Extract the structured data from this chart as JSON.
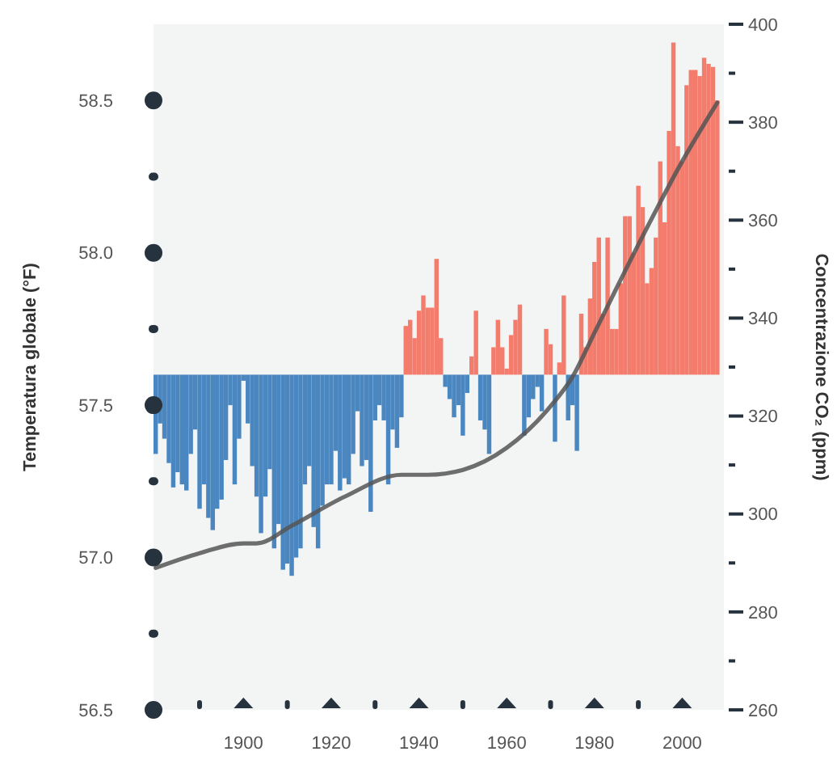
{
  "chart_data": {
    "type": "bar",
    "ylabel": "Temperatura globale (°F)",
    "y2label": "Concentrazione CO₂ (ppm)",
    "x": [
      1880,
      1881,
      1882,
      1883,
      1884,
      1885,
      1886,
      1887,
      1888,
      1889,
      1890,
      1891,
      1892,
      1893,
      1894,
      1895,
      1896,
      1897,
      1898,
      1899,
      1900,
      1901,
      1902,
      1903,
      1904,
      1905,
      1906,
      1907,
      1908,
      1909,
      1910,
      1911,
      1912,
      1913,
      1914,
      1915,
      1916,
      1917,
      1918,
      1919,
      1920,
      1921,
      1922,
      1923,
      1924,
      1925,
      1926,
      1927,
      1928,
      1929,
      1930,
      1931,
      1932,
      1933,
      1934,
      1935,
      1936,
      1937,
      1938,
      1939,
      1940,
      1941,
      1942,
      1943,
      1944,
      1945,
      1946,
      1947,
      1948,
      1949,
      1950,
      1951,
      1952,
      1953,
      1954,
      1955,
      1956,
      1957,
      1958,
      1959,
      1960,
      1961,
      1962,
      1963,
      1964,
      1965,
      1966,
      1967,
      1968,
      1969,
      1970,
      1971,
      1972,
      1973,
      1974,
      1975,
      1976,
      1977,
      1978,
      1979,
      1980,
      1981,
      1982,
      1983,
      1984,
      1985,
      1986,
      1987,
      1988,
      1989,
      1990,
      1991,
      1992,
      1993,
      1994,
      1995,
      1996,
      1997,
      1998,
      1999,
      2000,
      2001,
      2002,
      2003,
      2004,
      2005,
      2006,
      2007,
      2008
    ],
    "series": [
      {
        "base": [
          57.6,
          57.6,
          57.6,
          57.6,
          57.6,
          57.6,
          57.6,
          57.6,
          57.6,
          57.6,
          57.6,
          57.6,
          57.6,
          57.6,
          57.6,
          57.6,
          57.6,
          57.6,
          57.6,
          57.6,
          57.6,
          57.6,
          57.6,
          57.6,
          57.6,
          57.6,
          57.6,
          57.6,
          57.6,
          57.6,
          57.6,
          57.6,
          57.6,
          57.6,
          57.6,
          57.6,
          57.6,
          57.6,
          57.6,
          57.6,
          57.6,
          57.6,
          57.6,
          57.6,
          57.6,
          57.6,
          57.6,
          57.6,
          57.6,
          57.6,
          57.6,
          57.6,
          57.6,
          57.6,
          57.6,
          57.6,
          57.6,
          57.6,
          57.6,
          57.6,
          57.6,
          57.6,
          57.6,
          57.6,
          57.6,
          57.6,
          57.6,
          57.6,
          57.6,
          57.6,
          57.6,
          57.6,
          57.6,
          57.6,
          57.6,
          57.6,
          57.6,
          57.6,
          57.6,
          57.6,
          57.6,
          57.6,
          57.6,
          57.6,
          57.6,
          57.6,
          57.6,
          57.6,
          57.6,
          57.6,
          57.6,
          57.6,
          57.6,
          57.6,
          57.6,
          57.6,
          57.6,
          57.6,
          57.6,
          57.6,
          57.6,
          57.6,
          57.6,
          57.6,
          57.6,
          57.6,
          57.6,
          57.6,
          57.6,
          57.6,
          57.6,
          57.6,
          57.6,
          57.6,
          57.6,
          57.6,
          57.6,
          57.6,
          57.6,
          57.6,
          57.6,
          57.6,
          57.6,
          57.6,
          57.6,
          57.6,
          57.6,
          57.6,
          57.6
        ],
        "colors": [
          "#4a86bf",
          "#4a86bf",
          "#4a86bf",
          "#4a86bf",
          "#4a86bf",
          "#4a86bf",
          "#4a86bf",
          "#4a86bf",
          "#4a86bf",
          "#4a86bf",
          "#4a86bf",
          "#4a86bf",
          "#4a86bf",
          "#4a86bf",
          "#4a86bf",
          "#4a86bf",
          "#4a86bf",
          "#4a86bf",
          "#4a86bf",
          "#4a86bf",
          "#4a86bf",
          "#4a86bf",
          "#4a86bf",
          "#4a86bf",
          "#4a86bf",
          "#4a86bf",
          "#4a86bf",
          "#4a86bf",
          "#4a86bf",
          "#4a86bf",
          "#4a86bf",
          "#4a86bf",
          "#4a86bf",
          "#4a86bf",
          "#4a86bf",
          "#4a86bf",
          "#4a86bf",
          "#4a86bf",
          "#4a86bf",
          "#4a86bf",
          "#4a86bf",
          "#4a86bf",
          "#4a86bf",
          "#4a86bf",
          "#4a86bf",
          "#4a86bf",
          "#4a86bf",
          "#4a86bf",
          "#4a86bf",
          "#4a86bf",
          "#4a86bf",
          "#4a86bf",
          "#4a86bf",
          "#4a86bf",
          "#4a86bf",
          "#4a86bf",
          "#4a86bf",
          "#f47c6c",
          "#f47c6c",
          "#f47c6c",
          "#f47c6c",
          "#f47c6c",
          "#f47c6c",
          "#f47c6c",
          "#f47c6c",
          "#f47c6c",
          "#4a86bf",
          "#4a86bf",
          "#4a86bf",
          "#4a86bf",
          "#4a86bf",
          "#4a86bf",
          "#f47c6c",
          "#f47c6c",
          "#4a86bf",
          "#4a86bf",
          "#4a86bf",
          "#f47c6c",
          "#f47c6c",
          "#f47c6c",
          "#f47c6c",
          "#f47c6c",
          "#f47c6c",
          "#f47c6c",
          "#4a86bf",
          "#4a86bf",
          "#4a86bf",
          "#4a86bf",
          "#4a86bf",
          "#f47c6c",
          "#f47c6c",
          "#4a86bf",
          "#f47c6c",
          "#f47c6c",
          "#4a86bf",
          "#4a86bf",
          "#4a86bf",
          "#f47c6c",
          "#f47c6c",
          "#f47c6c",
          "#f47c6c",
          "#f47c6c",
          "#f47c6c",
          "#f47c6c",
          "#f47c6c",
          "#f47c6c",
          "#f47c6c",
          "#f47c6c",
          "#f47c6c",
          "#f47c6c",
          "#f47c6c",
          "#f47c6c",
          "#f47c6c",
          "#f47c6c",
          "#f47c6c",
          "#f47c6c",
          "#f47c6c",
          "#f47c6c",
          "#f47c6c",
          "#f47c6c",
          "#f47c6c",
          "#f47c6c",
          "#f47c6c",
          "#f47c6c",
          "#f47c6c",
          "#f47c6c",
          "#f47c6c",
          "#f47c6c",
          "#f47c6c"
        ],
        "values": [
          -0.26,
          -0.16,
          -0.21,
          -0.29,
          -0.37,
          -0.32,
          -0.36,
          -0.38,
          -0.26,
          -0.18,
          -0.44,
          -0.36,
          -0.47,
          -0.51,
          -0.44,
          -0.41,
          -0.28,
          -0.1,
          -0.36,
          -0.21,
          -0.02,
          -0.16,
          -0.3,
          -0.4,
          -0.52,
          -0.4,
          -0.31,
          -0.57,
          -0.49,
          -0.64,
          -0.62,
          -0.66,
          -0.6,
          -0.57,
          -0.36,
          -0.3,
          -0.5,
          -0.57,
          -0.43,
          -0.36,
          -0.36,
          -0.25,
          -0.38,
          -0.34,
          -0.36,
          -0.26,
          -0.12,
          -0.3,
          -0.28,
          -0.45,
          -0.15,
          -0.1,
          -0.15,
          -0.36,
          -0.18,
          -0.24,
          -0.14,
          0.16,
          0.18,
          0.12,
          0.21,
          0.26,
          0.22,
          0.22,
          0.38,
          0.12,
          -0.04,
          -0.08,
          -0.14,
          -0.1,
          -0.2,
          -0.06,
          0.06,
          0.21,
          -0.15,
          -0.18,
          -0.26,
          0.09,
          0.18,
          0.09,
          0.02,
          0.13,
          0.18,
          0.23,
          -0.2,
          -0.14,
          -0.08,
          -0.04,
          -0.12,
          0.15,
          0.1,
          -0.22,
          0.04,
          0.26,
          -0.15,
          -0.1,
          -0.25,
          0.2,
          0.09,
          0.25,
          0.37,
          0.45,
          0.2,
          0.45,
          0.15,
          0.15,
          0.3,
          0.52,
          0.52,
          0.4,
          0.62,
          0.55,
          0.3,
          0.35,
          0.45,
          0.7,
          0.5,
          0.8,
          1.09,
          0.75,
          0.7,
          0.95,
          1,
          1,
          0.98,
          1.04,
          1.02,
          1.01,
          0.9
        ]
      },
      {
        "type": "line",
        "axis": "y2",
        "color": "#555555",
        "x": [
          1880,
          1890,
          1900,
          1903,
          1911,
          1923,
          1936,
          1942,
          1950,
          1960,
          1970,
          1975,
          1980,
          1990,
          2000,
          2008
        ],
        "values": [
          289,
          292,
          294,
          294,
          297.6,
          303.5,
          308,
          308,
          309,
          313.5,
          322,
          328,
          337,
          355,
          372,
          384
        ]
      }
    ],
    "xlim": [
      1879.5,
      2009.5
    ],
    "xticks": [
      {
        "value": 1890,
        "label": null
      },
      1900,
      {
        "value": 1910,
        "label": null
      },
      1920,
      {
        "value": 1930,
        "label": null
      },
      1940,
      {
        "value": 1950,
        "label": null
      },
      1960,
      {
        "value": 1970,
        "label": null
      },
      1980,
      {
        "value": 1990,
        "label": null
      },
      2000
    ],
    "ylim": [
      56.5,
      58.75
    ],
    "yticks": [
      56.5,
      {
        "value": 56.75,
        "label": null
      },
      {
        "value": 57,
        "label": "57.0"
      },
      {
        "value": 57.25,
        "label": null
      },
      57.5,
      {
        "value": 57.75,
        "label": null
      },
      {
        "value": 58,
        "label": "58.0"
      },
      {
        "value": 58.25,
        "label": null
      },
      58.5
    ],
    "y2lim": [
      260,
      400
    ],
    "y2ticks": [
      260,
      {
        "value": 270,
        "label": null
      },
      280,
      {
        "value": 290,
        "label": null
      },
      300,
      {
        "value": 310,
        "label": null
      },
      320,
      {
        "value": 330,
        "label": null
      },
      340,
      {
        "value": 350,
        "label": null
      },
      360,
      {
        "value": 370,
        "label": null
      },
      380,
      {
        "value": 390,
        "label": null
      },
      400
    ]
  }
}
